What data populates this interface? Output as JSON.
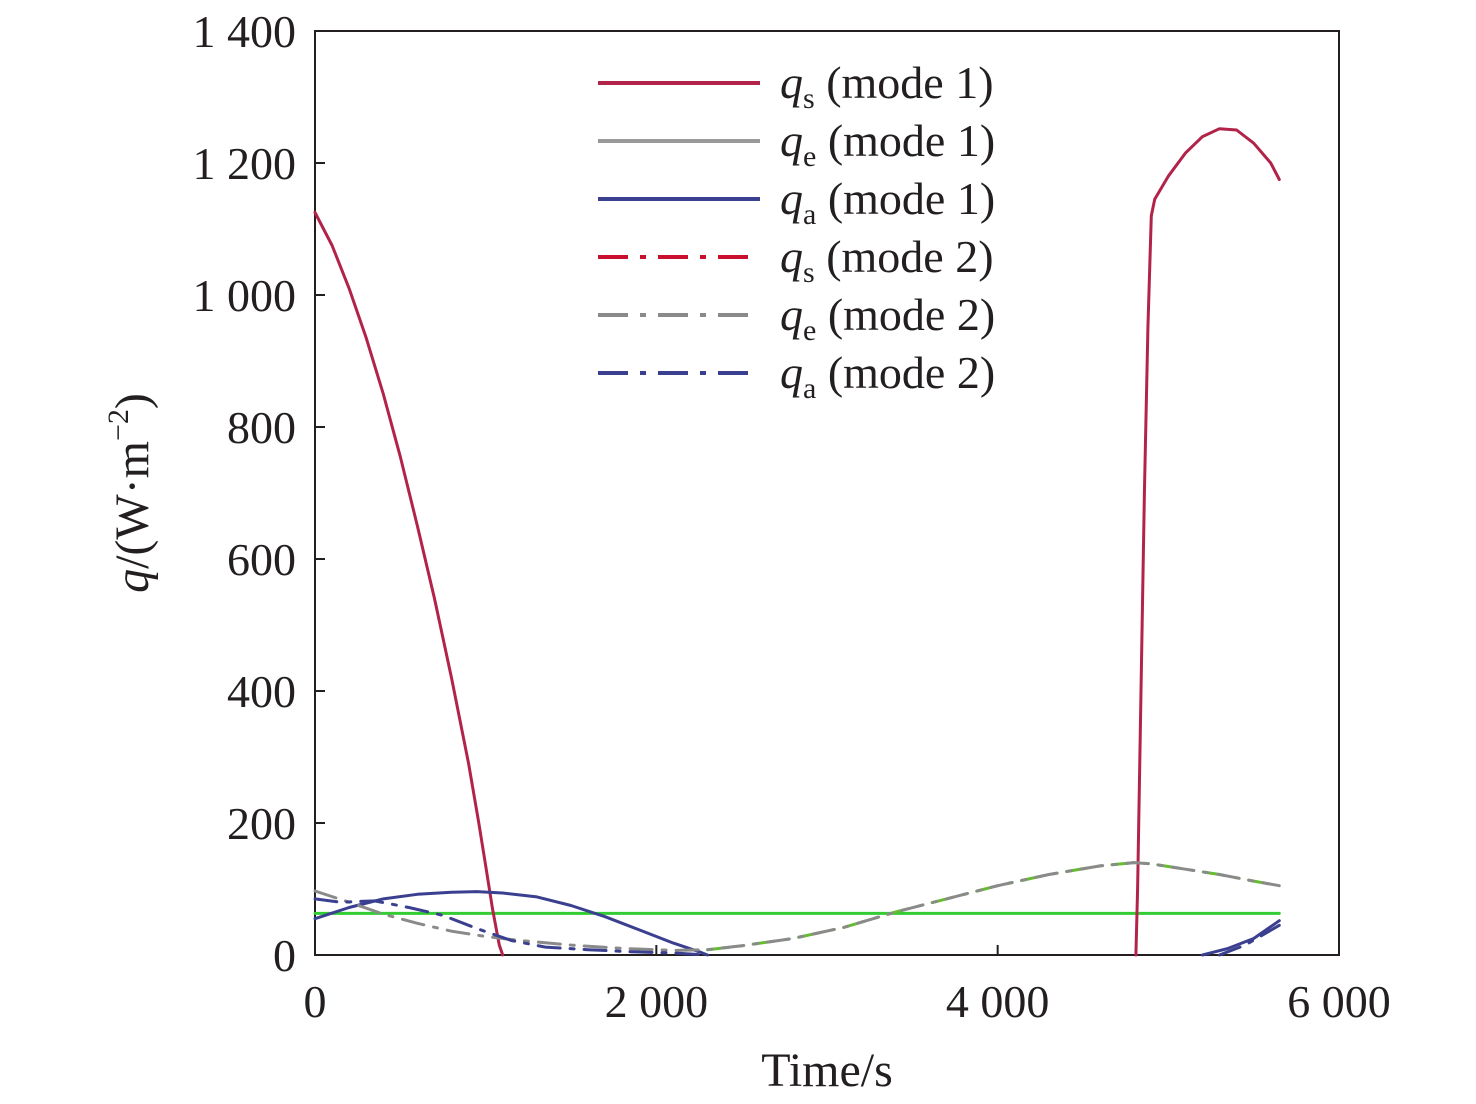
{
  "chart_data": {
    "type": "line",
    "title": "",
    "xlabel": "Time/s",
    "ylabel": {
      "symbol": "q",
      "unit_open": "/(W·m",
      "unit_exp": "−2",
      "unit_close": ")"
    },
    "xlim": [
      0,
      6000
    ],
    "ylim": [
      0,
      1400
    ],
    "x_ticks": [
      {
        "value": 0,
        "label": "0"
      },
      {
        "value": 2000,
        "label": "2 000"
      },
      {
        "value": 4000,
        "label": "4 000"
      },
      {
        "value": 6000,
        "label": "6 000"
      }
    ],
    "y_ticks": [
      {
        "value": 0,
        "label": "0"
      },
      {
        "value": 200,
        "label": "200"
      },
      {
        "value": 400,
        "label": "400"
      },
      {
        "value": 600,
        "label": "600"
      },
      {
        "value": 800,
        "label": "800"
      },
      {
        "value": 1000,
        "label": "1 000"
      },
      {
        "value": 1200,
        "label": "1 200"
      },
      {
        "value": 1400,
        "label": "1 400"
      }
    ],
    "grid": false,
    "legend_position": "top-center",
    "series": [
      {
        "name": "qs (mode 1)",
        "symbol": "q",
        "sub": "s",
        "mode": "(mode 1)",
        "color": "#b2234a",
        "dash": "solid",
        "segments": [
          [
            [
              0,
              1125
            ],
            [
              100,
              1075
            ],
            [
              200,
              1010
            ],
            [
              300,
              935
            ],
            [
              400,
              850
            ],
            [
              500,
              755
            ],
            [
              600,
              650
            ],
            [
              700,
              540
            ],
            [
              800,
              420
            ],
            [
              900,
              290
            ],
            [
              960,
              200
            ],
            [
              1000,
              135
            ],
            [
              1040,
              70
            ],
            [
              1080,
              15
            ],
            [
              1100,
              0
            ]
          ],
          [
            [
              4810,
              0
            ],
            [
              4820,
              100
            ],
            [
              4840,
              400
            ],
            [
              4860,
              700
            ],
            [
              4880,
              950
            ],
            [
              4900,
              1120
            ],
            [
              4920,
              1145
            ],
            [
              5000,
              1180
            ],
            [
              5100,
              1215
            ],
            [
              5200,
              1240
            ],
            [
              5300,
              1252
            ],
            [
              5400,
              1250
            ],
            [
              5500,
              1230
            ],
            [
              5600,
              1200
            ],
            [
              5650,
              1175
            ]
          ]
        ]
      },
      {
        "name": "qe (mode 1)",
        "symbol": "q",
        "sub": "e",
        "mode": "(mode 1)",
        "color": "#999999",
        "dash": "solid",
        "segments": []
      },
      {
        "name": "qa (mode 1)",
        "symbol": "q",
        "sub": "a",
        "mode": "(mode 1)",
        "color": "#3b3f8f",
        "dash": "solid",
        "segments": [
          [
            [
              0,
              55
            ],
            [
              200,
              72
            ],
            [
              400,
              85
            ],
            [
              600,
              92
            ],
            [
              800,
              95
            ],
            [
              950,
              96
            ],
            [
              1100,
              94
            ],
            [
              1300,
              88
            ],
            [
              1500,
              75
            ],
            [
              1700,
              58
            ],
            [
              1900,
              38
            ],
            [
              2100,
              18
            ],
            [
              2250,
              5
            ],
            [
              2300,
              0
            ]
          ],
          [
            [
              5200,
              0
            ],
            [
              5350,
              10
            ],
            [
              5500,
              25
            ],
            [
              5650,
              52
            ]
          ]
        ]
      },
      {
        "name": "qs (mode 2)",
        "symbol": "q",
        "sub": "s",
        "mode": "(mode 2)",
        "color": "#c8102e",
        "dash": "dashdot",
        "segments": []
      },
      {
        "name": "qe (mode 2)",
        "symbol": "q",
        "sub": "e",
        "mode": "(mode 2)",
        "color": "#8a8a8a",
        "dash": "dashdot",
        "segments": [
          [
            [
              0,
              97
            ],
            [
              200,
              80
            ],
            [
              400,
              62
            ],
            [
              600,
              48
            ],
            [
              800,
              36
            ],
            [
              1000,
              28
            ],
            [
              1200,
              22
            ],
            [
              1500,
              15
            ],
            [
              1800,
              10
            ],
            [
              2100,
              7
            ],
            [
              2300,
              8
            ],
            [
              2500,
              14
            ],
            [
              2800,
              25
            ],
            [
              3100,
              42
            ],
            [
              3400,
              65
            ],
            [
              3700,
              85
            ],
            [
              4000,
              105
            ],
            [
              4300,
              122
            ],
            [
              4600,
              135
            ],
            [
              4800,
              140
            ],
            [
              4900,
              138
            ],
            [
              5100,
              130
            ],
            [
              5300,
              122
            ],
            [
              5500,
              112
            ],
            [
              5650,
              105
            ]
          ]
        ]
      },
      {
        "name": "qa (mode 2)",
        "symbol": "q",
        "sub": "a",
        "mode": "(mode 2)",
        "color": "#3b3f8f",
        "dash": "dashdot",
        "segments": [
          [
            [
              0,
              85
            ],
            [
              150,
              80
            ],
            [
              350,
              82
            ],
            [
              550,
              72
            ],
            [
              750,
              60
            ],
            [
              950,
              40
            ],
            [
              1150,
              22
            ],
            [
              1350,
              12
            ],
            [
              1600,
              8
            ],
            [
              1850,
              5
            ],
            [
              2100,
              3
            ],
            [
              2300,
              0
            ]
          ],
          [
            [
              5300,
              0
            ],
            [
              5450,
              15
            ],
            [
              5650,
              45
            ]
          ]
        ]
      }
    ],
    "unlabeled_series": [
      {
        "color": "#33cc33",
        "dash": "solid",
        "segments": [
          [
            [
              0,
              63
            ],
            [
              5650,
              63
            ]
          ]
        ]
      },
      {
        "color": "#66bb33",
        "dash": "dashdot",
        "segments": [
          [
            [
              2300,
              8
            ],
            [
              2500,
              14
            ],
            [
              2800,
              25
            ],
            [
              3100,
              42
            ],
            [
              3400,
              65
            ],
            [
              3700,
              85
            ],
            [
              4000,
              105
            ],
            [
              4300,
              122
            ],
            [
              4600,
              135
            ],
            [
              4800,
              140
            ],
            [
              4900,
              138
            ],
            [
              5100,
              130
            ],
            [
              5300,
              122
            ],
            [
              5500,
              112
            ],
            [
              5650,
              105
            ]
          ]
        ]
      }
    ]
  }
}
